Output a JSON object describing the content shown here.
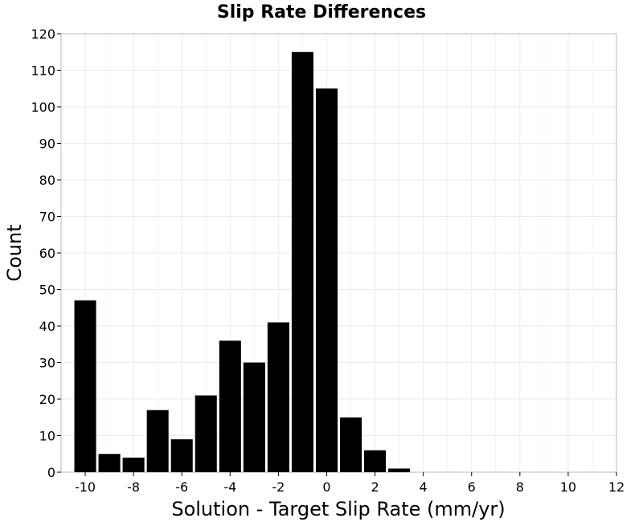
{
  "chart_data": {
    "type": "bar",
    "title": "Slip Rate Differences",
    "xlabel": "Solution - Target Slip Rate (mm/yr)",
    "ylabel": "Count",
    "xlim": [
      -11,
      12
    ],
    "ylim": [
      0,
      120
    ],
    "xticks": [
      -10,
      -8,
      -6,
      -4,
      -2,
      0,
      2,
      4,
      6,
      8,
      10,
      12
    ],
    "yticks": [
      0,
      10,
      20,
      30,
      40,
      50,
      60,
      70,
      80,
      90,
      100,
      110,
      120
    ],
    "grid": true,
    "legend": "none",
    "bar_color": "#000000",
    "bar_width": 1,
    "bins": [
      {
        "x": -10,
        "value": 47
      },
      {
        "x": -9,
        "value": 5
      },
      {
        "x": -8,
        "value": 4
      },
      {
        "x": -7,
        "value": 17
      },
      {
        "x": -6,
        "value": 9
      },
      {
        "x": -5,
        "value": 21
      },
      {
        "x": -4,
        "value": 36
      },
      {
        "x": -3,
        "value": 30
      },
      {
        "x": -2,
        "value": 41
      },
      {
        "x": -1,
        "value": 115
      },
      {
        "x": 0,
        "value": 105
      },
      {
        "x": 1,
        "value": 15
      },
      {
        "x": 2,
        "value": 6
      },
      {
        "x": 3,
        "value": 1
      }
    ]
  }
}
